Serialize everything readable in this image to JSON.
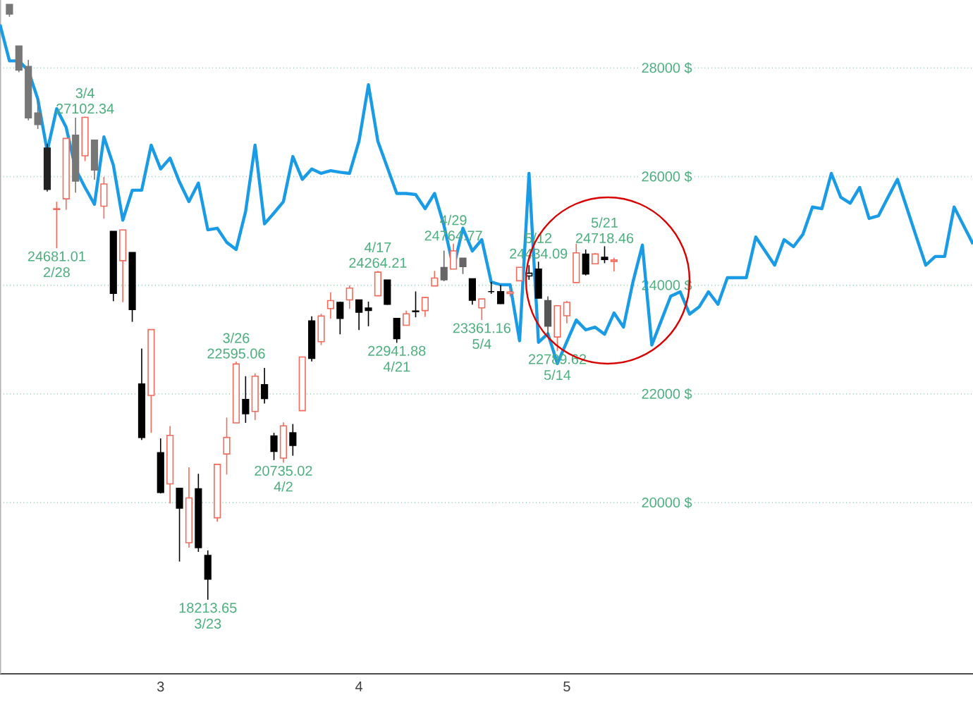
{
  "chart_data": {
    "type": "candlestick",
    "categories": [
      null,
      null,
      null,
      null,
      null,
      null,
      null,
      null,
      null,
      null,
      null,
      null,
      null,
      null,
      null,
      null,
      null,
      "3",
      null,
      null,
      null,
      null,
      null,
      null,
      null,
      null,
      null,
      null,
      null,
      null,
      null,
      null,
      null,
      null,
      null,
      null,
      null,
      null,
      "4",
      null,
      null,
      null,
      null,
      null,
      null,
      null,
      null,
      null,
      null,
      null,
      null,
      null,
      null,
      null,
      null,
      null,
      null,
      null,
      null,
      null,
      "5",
      null,
      null,
      null,
      null,
      null,
      null,
      null,
      null,
      null,
      null,
      null,
      null,
      null,
      null,
      null,
      null,
      null,
      null,
      null,
      null,
      null,
      null,
      null,
      null,
      null,
      null,
      null,
      null,
      null,
      null,
      null,
      null,
      null,
      null,
      null,
      null,
      null,
      null,
      null,
      null,
      null,
      null,
      null
    ],
    "ylim": [
      16850,
      29250
    ],
    "yticks": [
      {
        "value": 20000,
        "label": "20000 $"
      },
      {
        "value": 22000,
        "label": "22000 $"
      },
      {
        "value": 24000,
        "label": "24000 $"
      },
      {
        "value": 26000,
        "label": "26000 $"
      },
      {
        "value": 28000,
        "label": "28000 $"
      }
    ],
    "grid": "y",
    "series": [
      {
        "type": "line",
        "color": "#1a9be6",
        "values": [
          28800,
          28130,
          28130,
          27950,
          27430,
          26470,
          27250,
          26910,
          26140,
          25800,
          25490,
          26730,
          26210,
          25200,
          25750,
          25750,
          26580,
          26140,
          26340,
          25900,
          25540,
          25880,
          25020,
          25050,
          24790,
          24660,
          25360,
          26580,
          25130,
          25330,
          25540,
          26370,
          25950,
          26140,
          26060,
          26110,
          26080,
          26060,
          26650,
          27690,
          26650,
          26170,
          25690,
          25690,
          25670,
          25410,
          25690,
          25100,
          24320,
          25050,
          24630,
          24840,
          24060,
          24010,
          24010,
          22980,
          26060,
          22950,
          23110,
          22560,
          22960,
          23360,
          23180,
          23230,
          23100,
          23490,
          23230,
          24060,
          24740,
          22900,
          23350,
          23800,
          23880,
          23470,
          23600,
          23880,
          23650,
          24140,
          24140,
          24140,
          24890,
          24630,
          24370,
          24840,
          24710,
          24940,
          25440,
          25410,
          26060,
          25620,
          25510,
          25800,
          25230,
          25280,
          25620,
          25950,
          25420,
          24890,
          24370,
          24530,
          24530,
          25440,
          25100,
          24760
        ]
      },
      {
        "ohlc": [
          null,
          [
            29168,
            29168,
            28942,
            28992
          ],
          [
            28403,
            28403,
            27921,
            27961
          ],
          [
            28028,
            28149,
            27036,
            27081
          ],
          [
            27172,
            27428,
            26878,
            26957
          ],
          [
            26526,
            26600,
            25726,
            25766
          ],
          [
            25395,
            25538,
            24681.01,
            25409
          ],
          [
            25591,
            26706,
            25391,
            26703
          ],
          [
            26762,
            27084,
            25706,
            25917
          ],
          [
            26383,
            27102.34,
            26286,
            27091
          ],
          [
            26671,
            26671,
            25943,
            26121
          ],
          [
            25457,
            25994,
            25226,
            25864
          ],
          [
            24992,
            24992,
            23707,
            23851
          ],
          [
            24453,
            25020,
            23690,
            25018
          ],
          [
            24604,
            24604,
            23328,
            23553
          ],
          [
            22184,
            22837,
            21154,
            21200
          ],
          [
            21973,
            23185,
            21285,
            23185
          ],
          [
            20918,
            21183,
            20170,
            20189
          ],
          [
            20345,
            21411,
            19985,
            21237
          ],
          [
            20263,
            20263,
            18917,
            19898
          ],
          [
            19262,
            20652,
            19173,
            20087
          ],
          [
            20253,
            20531,
            19094,
            19174
          ],
          [
            19028,
            19121,
            18213.65,
            18591
          ],
          [
            19722,
            20704,
            19650,
            20704
          ],
          [
            20896,
            21565,
            20518,
            21200
          ],
          [
            21468,
            22595.06,
            21468,
            22552
          ],
          [
            21898,
            22327,
            21469,
            21636
          ],
          [
            21678,
            22378,
            21522,
            22327
          ],
          [
            22170,
            22480,
            21823,
            21917
          ],
          [
            21227,
            21285,
            20784,
            20943
          ],
          [
            20819,
            21477,
            20735.02,
            21413
          ],
          [
            21285,
            21447,
            20863,
            21052
          ],
          [
            21693,
            22680,
            21693,
            22680
          ],
          [
            23345,
            23431,
            22599,
            22654
          ],
          [
            22962,
            23474,
            22900,
            23434
          ],
          [
            23572,
            23872,
            23384,
            23719
          ],
          [
            23685,
            23700,
            23098,
            23390
          ],
          [
            23731,
            24000,
            23567,
            23949
          ],
          [
            23730,
            23730,
            23177,
            23504
          ],
          [
            23580,
            23700,
            23246,
            23538
          ],
          [
            23807,
            24264.21,
            23807,
            24242
          ],
          [
            24098,
            24098,
            23641,
            23650
          ],
          [
            23391,
            23391,
            22941.88,
            23018
          ],
          [
            23264,
            23532,
            23264,
            23475
          ],
          [
            23527,
            23887,
            23411,
            23515
          ],
          [
            23535,
            23787,
            23421,
            23775
          ],
          [
            23989,
            24264,
            23989,
            24134
          ],
          [
            24327,
            24638,
            24076,
            24101
          ],
          [
            24299,
            24764.77,
            24299,
            24633
          ],
          [
            24500,
            24500,
            24208,
            24345
          ],
          [
            24120,
            24120,
            23645,
            23724
          ],
          [
            23586,
            23749,
            23361.16,
            23749
          ],
          [
            23883,
            24064,
            23843,
            23883
          ],
          [
            23883,
            24007,
            23658,
            23664
          ],
          [
            23847,
            23949,
            23795,
            23875
          ],
          [
            24083,
            24331,
            24083,
            24331
          ],
          [
            24173,
            24370,
            24102,
            24222
          ],
          [
            24298,
            24434.09,
            23758,
            23765
          ],
          [
            23719,
            23797,
            23064,
            23248
          ],
          [
            23049,
            23625,
            22789.62,
            23625
          ],
          [
            23439,
            23711,
            23299,
            23685
          ],
          [
            24051,
            24765,
            24051,
            24597
          ],
          [
            24572,
            24659,
            24182,
            24207
          ],
          [
            24396,
            24595,
            24396,
            24576
          ],
          [
            24515,
            24718.46,
            24407,
            24474
          ],
          [
            24440,
            24507,
            24255,
            24465
          ],
          null,
          null,
          null,
          null,
          null,
          null,
          null,
          null,
          null,
          null,
          null,
          null,
          null,
          null,
          null,
          null,
          null,
          null,
          null,
          null,
          null,
          null,
          null,
          null,
          null,
          null,
          null,
          null,
          null,
          null,
          null,
          null,
          null,
          null,
          null,
          null,
          null,
          null
        ],
        "colors": [
          null,
          "#777777",
          "#777777",
          "#777777",
          "#777777",
          "#222222",
          "#f26b5b",
          "#f26b5b",
          "#777777",
          "#f26b5b",
          "#777777",
          "#f26b5b",
          "#000000",
          "#f26b5b",
          "#000000",
          "#000000",
          "#f26b5b",
          "#000000",
          "#f26b5b",
          "#000000",
          "#f26b5b",
          "#000000",
          "#000000",
          "#f26b5b",
          "#f26b5b",
          "#f26b5b",
          "#000000",
          "#f26b5b",
          "#000000",
          "#000000",
          "#f26b5b",
          "#000000",
          "#f26b5b",
          "#000000",
          "#f26b5b",
          "#f26b5b",
          "#000000",
          "#f26b5b",
          "#000000",
          "#000000",
          "#f26b5b",
          "#000000",
          "#000000",
          "#f26b5b",
          "#000000",
          "#f26b5b",
          "#f26b5b",
          "#666666",
          "#f26b5b",
          "#666666",
          "#000000",
          "#f26b5b",
          "#000000",
          "#000000",
          "#f26b5b",
          "#f26b5b",
          "#000000",
          "#000000",
          "#555555",
          "#f26b5b",
          "#f26b5b",
          "#f26b5b",
          "#000000",
          "#f26b5b",
          "#000000",
          "#f26b5b",
          null,
          null,
          null,
          null,
          null,
          null,
          null,
          null,
          null,
          null,
          null,
          null,
          null,
          null,
          null,
          null,
          null,
          null,
          null,
          null,
          null,
          null,
          null,
          null,
          null,
          null,
          null,
          null,
          null,
          null,
          null,
          null,
          null,
          null,
          null,
          null,
          null,
          null
        ]
      }
    ],
    "annotations": [
      {
        "text": "24681.01",
        "y": 24681.01
      },
      {
        "text": "2/28",
        "y": 24681.01
      },
      {
        "text": "3/4",
        "y": 27102.34
      },
      {
        "text": "27102.34",
        "y": 27102.34
      },
      {
        "text": "18213.65",
        "y": 18213.65
      },
      {
        "text": "3/23",
        "y": 18213.65
      },
      {
        "text": "3/26",
        "y": 22595.06
      },
      {
        "text": "22595.06",
        "y": 22595.06
      },
      {
        "text": "20735.02",
        "y": 20735.02
      },
      {
        "text": "4/2",
        "y": 20735.02
      },
      {
        "text": "4/17",
        "y": 24264.21
      },
      {
        "text": "24264.21",
        "y": 24264.21
      },
      {
        "text": "22941.88",
        "y": 22941.88
      },
      {
        "text": "4/21",
        "y": 22941.88
      },
      {
        "text": "4/29",
        "y": 24764.77
      },
      {
        "text": "24764.77",
        "y": 24764.77
      },
      {
        "text": "23361.16",
        "y": 23361.16
      },
      {
        "text": "5/4",
        "y": 23361.16
      },
      {
        "text": "5/12",
        "y": 24434.09
      },
      {
        "text": "24434.09",
        "y": 24434.09
      },
      {
        "text": "22789.62",
        "y": 22789.62
      },
      {
        "text": "5/14",
        "y": 22789.62
      },
      {
        "text": "5/21",
        "y": 24718.46
      },
      {
        "text": "24718.46",
        "y": 24718.46
      }
    ]
  }
}
